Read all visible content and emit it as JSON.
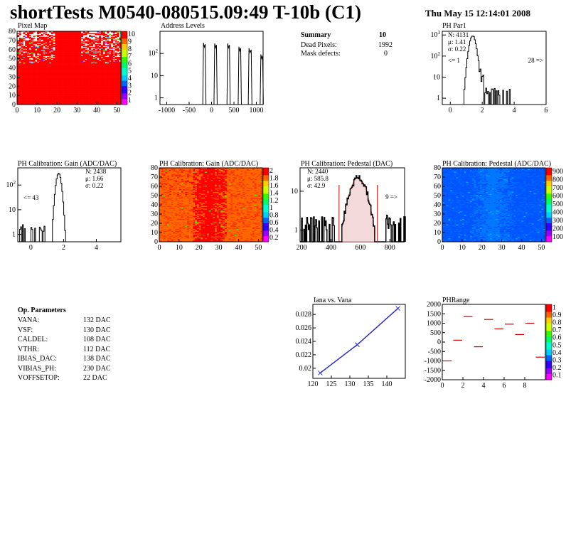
{
  "header": {
    "title": "shortTests M0540-080515.09:49 T-10b (C1)",
    "date": "Thu May 15 12:14:01 2008"
  },
  "summary": {
    "heading": "Summary",
    "heading_value": "10",
    "rows": [
      {
        "label": "Dead Pixels:",
        "value": "1992"
      },
      {
        "label": "Mask defects:",
        "value": "0"
      }
    ]
  },
  "op_params": {
    "heading": "Op. Parameters",
    "rows": [
      {
        "label": "VANA:",
        "value": "132 DAC"
      },
      {
        "label": "VSF:",
        "value": "130 DAC"
      },
      {
        "label": "CALDEL:",
        "value": "108 DAC"
      },
      {
        "label": "VTHR:",
        "value": "112 DAC"
      },
      {
        "label": "IBIAS_DAC:",
        "value": "138 DAC"
      },
      {
        "label": "VIBIAS_PH:",
        "value": "230 DAC"
      },
      {
        "label": "VOFFSETOP:",
        "value": "22 DAC"
      }
    ]
  },
  "chart_data": [
    {
      "id": "pixel-map",
      "type": "heatmap",
      "title": "Pixel Map",
      "xlim": [
        0,
        52
      ],
      "ylim": [
        0,
        80
      ],
      "xticks": [
        0,
        10,
        20,
        30,
        40,
        50
      ],
      "yticks": [
        0,
        10,
        20,
        30,
        40,
        50,
        60,
        70,
        80
      ],
      "palette_ticks": [
        "10",
        "9",
        "8",
        "7",
        "6",
        "5",
        "4",
        "3",
        "2",
        "1"
      ],
      "description": "52x80 pixel map, mostly red (10), sparse low values at top edges"
    },
    {
      "id": "address-levels",
      "type": "line",
      "title": "Address Levels",
      "ylog": true,
      "xlim": [
        -1150,
        1150
      ],
      "ylim": [
        0.5,
        1000
      ],
      "xticks": [
        -1000,
        -500,
        0,
        500,
        1000
      ],
      "yticks": [
        "1",
        "10",
        "10^2"
      ],
      "peaks": [
        {
          "center": -160,
          "width": 40,
          "height": 300
        },
        {
          "center": 90,
          "width": 40,
          "height": 280
        },
        {
          "center": 380,
          "width": 40,
          "height": 280
        },
        {
          "center": 630,
          "width": 40,
          "height": 200
        },
        {
          "center": 860,
          "width": 50,
          "height": 170
        },
        {
          "center": 1120,
          "width": 40,
          "height": 90
        }
      ]
    },
    {
      "id": "ph-par1",
      "type": "bar",
      "title": "PH Par1",
      "ylog": true,
      "xlim": [
        -0.5,
        6
      ],
      "ylim": [
        0.5,
        1500
      ],
      "xticks": [
        0,
        2,
        4,
        6
      ],
      "yticks": [
        "1",
        "10",
        "10^2",
        "10^3"
      ],
      "stats": {
        "N": "N: 4131",
        "mean": "μ: 1.41",
        "sigma": "σ: 0.22"
      },
      "under": "<= 1",
      "over": "28 =>",
      "peak": {
        "center": 1.4,
        "sigma": 0.15,
        "height": 900
      }
    },
    {
      "id": "ph-gain-1d",
      "type": "bar",
      "title": "PH Calibration: Gain (ADC/DAC)",
      "ylog": true,
      "xlim": [
        -0.8,
        5.5
      ],
      "ylim": [
        0.5,
        500
      ],
      "xticks": [
        0,
        2,
        4
      ],
      "yticks": [
        "1",
        "10",
        "10^2"
      ],
      "stats": {
        "N": "N: 2438",
        "mean": "μ: 1.66",
        "sigma": "σ: 0.22"
      },
      "under": "<= 43",
      "peak": {
        "center": 1.7,
        "sigma": 0.12,
        "height": 300
      }
    },
    {
      "id": "ph-gain-map",
      "type": "heatmap",
      "title": "PH Calibration: Gain (ADC/DAC)",
      "xlim": [
        0,
        52
      ],
      "ylim": [
        0,
        80
      ],
      "xticks": [
        0,
        10,
        20,
        30,
        40,
        50
      ],
      "yticks": [
        0,
        10,
        20,
        30,
        40,
        50,
        60,
        70,
        80
      ],
      "palette_ticks": [
        "2",
        "1.8",
        "1.6",
        "1.4",
        "1.2",
        "1",
        "0.8",
        "0.6",
        "0.4",
        "0.2"
      ],
      "description": "orange background with red vertical band near columns 15-35"
    },
    {
      "id": "ph-pedestal-1d",
      "type": "bar",
      "title": "PH Calibration: Pedestal (DAC)",
      "ylog": true,
      "xlim": [
        190,
        900
      ],
      "ylim": [
        0.5,
        40
      ],
      "xticks": [
        200,
        400,
        600,
        800
      ],
      "yticks": [
        "1",
        "10"
      ],
      "stats": {
        "N": "N: 2440",
        "mean": "μ: 585.8",
        "sigma": "σ: 42.9"
      },
      "over": "9 =>",
      "fit_range": [
        455,
        715
      ],
      "peak": {
        "center": 585,
        "sigma": 45,
        "height": 22
      }
    },
    {
      "id": "ph-pedestal-map",
      "type": "heatmap",
      "title": "PH Calibration: Pedestal (ADC/DAC)",
      "xlim": [
        0,
        52
      ],
      "ylim": [
        0,
        80
      ],
      "xticks": [
        0,
        10,
        20,
        30,
        40,
        50
      ],
      "yticks": [
        0,
        10,
        20,
        30,
        40,
        50,
        60,
        70,
        80
      ],
      "palette_ticks": [
        "900",
        "800",
        "700",
        "600",
        "500",
        "400",
        "300",
        "200",
        "100"
      ],
      "description": "mostly blue with lighter cyan band near columns 20-40"
    },
    {
      "id": "iana-vana",
      "type": "line",
      "title": "Iana vs. Vana",
      "xlim": [
        120,
        145
      ],
      "ylim": [
        0.0185,
        0.0295
      ],
      "xticks": [
        120,
        125,
        130,
        135,
        140
      ],
      "yticks": [
        0.02,
        0.022,
        0.024,
        0.026,
        0.028
      ],
      "x": [
        122,
        132,
        143
      ],
      "y": [
        0.0193,
        0.0235,
        0.0289
      ]
    },
    {
      "id": "ph-range",
      "type": "scatter",
      "title": "PHRange",
      "xlim": [
        0,
        10
      ],
      "ylim": [
        -2000,
        2000
      ],
      "xticks": [
        0,
        2,
        4,
        6,
        8
      ],
      "yticks": [
        2000,
        1500,
        1000,
        500,
        0,
        -500,
        -1000,
        -1500,
        -2000
      ],
      "palette_ticks": [
        "1",
        "0.9",
        "0.8",
        "0.7",
        "0.6",
        "0.5",
        "0.4",
        "0.3",
        "0.2",
        "0.1"
      ],
      "x": [
        0.5,
        1.5,
        2.5,
        3.5,
        4.5,
        5.5,
        6.5,
        7.5,
        8.5,
        9.5
      ],
      "y": [
        -1000,
        100,
        1350,
        -250,
        1200,
        700,
        950,
        400,
        1000,
        -800
      ]
    }
  ]
}
